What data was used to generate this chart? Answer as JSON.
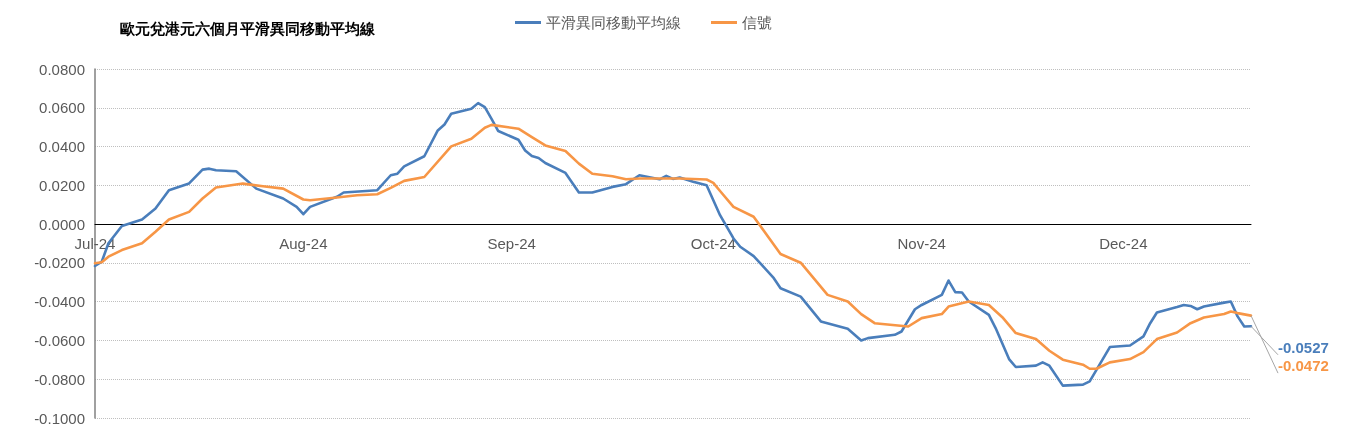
{
  "chart_data": {
    "type": "line",
    "title": "歐元兌港元六個月平滑異同移動平均線",
    "xlim": [
      "2024-07-01",
      "2024-12-20"
    ],
    "xticks": [
      {
        "value": "2024-07-01",
        "label": "Jul-24"
      },
      {
        "value": "2024-08-01",
        "label": "Aug-24"
      },
      {
        "value": "2024-09-01",
        "label": "Sep-24"
      },
      {
        "value": "2024-10-01",
        "label": "Oct-24"
      },
      {
        "value": "2024-11-01",
        "label": "Nov-24"
      },
      {
        "value": "2024-12-01",
        "label": "Dec-24"
      }
    ],
    "ylim": [
      -0.1,
      0.08
    ],
    "yticks": [
      {
        "value": -0.1,
        "label": "-0.1000"
      },
      {
        "value": -0.08,
        "label": "-0.0800"
      },
      {
        "value": -0.06,
        "label": "-0.0600"
      },
      {
        "value": -0.04,
        "label": "-0.0400"
      },
      {
        "value": -0.02,
        "label": "-0.0200"
      },
      {
        "value": 0,
        "label": "0.0000"
      },
      {
        "value": 0.02,
        "label": "0.0200"
      },
      {
        "value": 0.04,
        "label": "0.0400"
      },
      {
        "value": 0.06,
        "label": "0.0600"
      },
      {
        "value": 0.08,
        "label": "0.0800"
      }
    ],
    "grid": "y",
    "legend": "top",
    "marker": "none",
    "line_style": "solid",
    "series": [
      {
        "name": "平滑異同移動平均線",
        "color": "#4a7ebb",
        "x": [
          "2024-07-01",
          "2024-07-02",
          "2024-07-03",
          "2024-07-05",
          "2024-07-08",
          "2024-07-10",
          "2024-07-12",
          "2024-07-15",
          "2024-07-17",
          "2024-07-18",
          "2024-07-19",
          "2024-07-22",
          "2024-07-25",
          "2024-07-29",
          "2024-07-31",
          "2024-08-01",
          "2024-08-02",
          "2024-08-06",
          "2024-08-07",
          "2024-08-12",
          "2024-08-14",
          "2024-08-15",
          "2024-08-16",
          "2024-08-19",
          "2024-08-21",
          "2024-08-22",
          "2024-08-23",
          "2024-08-26",
          "2024-08-27",
          "2024-08-28",
          "2024-08-29",
          "2024-08-30",
          "2024-09-02",
          "2024-09-03",
          "2024-09-04",
          "2024-09-05",
          "2024-09-06",
          "2024-09-09",
          "2024-09-11",
          "2024-09-13",
          "2024-09-16",
          "2024-09-18",
          "2024-09-20",
          "2024-09-23",
          "2024-09-24",
          "2024-09-25",
          "2024-09-26",
          "2024-09-28",
          "2024-09-30",
          "2024-10-02",
          "2024-10-04",
          "2024-10-05",
          "2024-10-07",
          "2024-10-08",
          "2024-10-10",
          "2024-10-11",
          "2024-10-14",
          "2024-10-17",
          "2024-10-21",
          "2024-10-23",
          "2024-10-24",
          "2024-10-28",
          "2024-10-29",
          "2024-10-31",
          "2024-11-01",
          "2024-11-04",
          "2024-11-05",
          "2024-11-06",
          "2024-11-07",
          "2024-11-08",
          "2024-11-11",
          "2024-11-12",
          "2024-11-14",
          "2024-11-15",
          "2024-11-18",
          "2024-11-19",
          "2024-11-20",
          "2024-11-22",
          "2024-11-25",
          "2024-11-26",
          "2024-11-29",
          "2024-12-02",
          "2024-12-04",
          "2024-12-05",
          "2024-12-06",
          "2024-12-09",
          "2024-12-10",
          "2024-12-11",
          "2024-12-12",
          "2024-12-13",
          "2024-12-16",
          "2024-12-17",
          "2024-12-18",
          "2024-12-19",
          "2024-12-20"
        ],
        "values": [
          -0.0216,
          -0.0194,
          -0.0099,
          -0.001,
          0.0024,
          0.008,
          0.0175,
          0.021,
          0.0281,
          0.0286,
          0.0278,
          0.0273,
          0.0183,
          0.0132,
          0.0089,
          0.0051,
          0.0089,
          0.0141,
          0.0163,
          0.0175,
          0.0252,
          0.026,
          0.0298,
          0.035,
          0.0483,
          0.0514,
          0.0569,
          0.0595,
          0.0624,
          0.0603,
          0.0543,
          0.048,
          0.0435,
          0.038,
          0.0351,
          0.0341,
          0.0315,
          0.0264,
          0.0163,
          0.0163,
          0.0192,
          0.0206,
          0.0252,
          0.0231,
          0.0249,
          0.0233,
          0.024,
          0.0218,
          0.02,
          0.0046,
          -0.0074,
          -0.0117,
          -0.0165,
          -0.0202,
          -0.0279,
          -0.0331,
          -0.0374,
          -0.0502,
          -0.054,
          -0.06,
          -0.0588,
          -0.0571,
          -0.0554,
          -0.0439,
          -0.0417,
          -0.0365,
          -0.0291,
          -0.0351,
          -0.0353,
          -0.0399,
          -0.0468,
          -0.0536,
          -0.0696,
          -0.0737,
          -0.073,
          -0.0713,
          -0.073,
          -0.0833,
          -0.0828,
          -0.0811,
          -0.0634,
          -0.0626,
          -0.0579,
          -0.0511,
          -0.0456,
          -0.0428,
          -0.0417,
          -0.0422,
          -0.0439,
          -0.0425,
          -0.0405,
          -0.0399,
          -0.0476,
          -0.0528,
          -0.0527
        ],
        "value_labels": [
          null,
          null,
          null,
          null,
          null,
          null,
          null,
          null,
          null,
          null,
          null,
          null,
          null,
          null,
          null,
          null,
          null,
          null,
          null,
          null,
          null,
          null,
          null,
          null,
          null,
          null,
          null,
          null,
          null,
          null,
          null,
          null,
          null,
          null,
          null,
          null,
          null,
          null,
          null,
          null,
          null,
          null,
          null,
          null,
          null,
          null,
          null,
          null,
          null,
          null,
          null,
          null,
          null,
          null,
          null,
          null,
          null,
          null,
          null,
          null,
          null,
          null,
          null,
          null,
          null,
          null,
          null,
          null,
          null,
          null,
          null,
          null,
          null,
          null,
          null,
          null,
          null,
          null,
          null,
          null,
          null,
          null,
          null,
          null,
          null,
          null,
          null,
          null,
          null,
          null,
          null,
          null,
          null,
          null,
          "-0.0527"
        ]
      },
      {
        "name": "信號",
        "color": "#f79646",
        "x": [
          "2024-07-01",
          "2024-07-02",
          "2024-07-03",
          "2024-07-05",
          "2024-07-08",
          "2024-07-10",
          "2024-07-12",
          "2024-07-15",
          "2024-07-17",
          "2024-07-19",
          "2024-07-23",
          "2024-07-26",
          "2024-07-29",
          "2024-08-01",
          "2024-08-02",
          "2024-08-06",
          "2024-08-09",
          "2024-08-12",
          "2024-08-14",
          "2024-08-16",
          "2024-08-19",
          "2024-08-23",
          "2024-08-26",
          "2024-08-28",
          "2024-08-29",
          "2024-09-02",
          "2024-09-04",
          "2024-09-06",
          "2024-09-09",
          "2024-09-11",
          "2024-09-13",
          "2024-09-16",
          "2024-09-18",
          "2024-09-20",
          "2024-09-26",
          "2024-09-30",
          "2024-10-01",
          "2024-10-02",
          "2024-10-04",
          "2024-10-07",
          "2024-10-11",
          "2024-10-14",
          "2024-10-18",
          "2024-10-21",
          "2024-10-23",
          "2024-10-25",
          "2024-10-30",
          "2024-11-01",
          "2024-11-04",
          "2024-11-05",
          "2024-11-08",
          "2024-11-11",
          "2024-11-13",
          "2024-11-15",
          "2024-11-18",
          "2024-11-20",
          "2024-11-22",
          "2024-11-25",
          "2024-11-26",
          "2024-11-27",
          "2024-11-29",
          "2024-12-02",
          "2024-12-04",
          "2024-12-06",
          "2024-12-09",
          "2024-12-11",
          "2024-12-13",
          "2024-12-16",
          "2024-12-17",
          "2024-12-18",
          "2024-12-20"
        ],
        "values": [
          -0.0202,
          -0.0197,
          -0.0168,
          -0.0134,
          -0.0099,
          -0.0039,
          0.0024,
          0.0063,
          0.0132,
          0.0189,
          0.0209,
          0.0195,
          0.0183,
          0.0127,
          0.0123,
          0.0137,
          0.0149,
          0.0154,
          0.0187,
          0.0223,
          0.0243,
          0.0401,
          0.044,
          0.0497,
          0.0512,
          0.0492,
          0.0449,
          0.0406,
          0.0377,
          0.0312,
          0.026,
          0.0247,
          0.0231,
          0.0235,
          0.0235,
          0.023,
          0.0213,
          0.0171,
          0.0089,
          0.0038,
          -0.0154,
          -0.0199,
          -0.0365,
          -0.0399,
          -0.0464,
          -0.0511,
          -0.0528,
          -0.0485,
          -0.0464,
          -0.0425,
          -0.0399,
          -0.0417,
          -0.048,
          -0.0562,
          -0.0593,
          -0.0653,
          -0.0699,
          -0.0725,
          -0.0746,
          -0.0746,
          -0.0713,
          -0.0696,
          -0.066,
          -0.0593,
          -0.0559,
          -0.0511,
          -0.0482,
          -0.0464,
          -0.0451,
          -0.0459,
          -0.0472
        ],
        "value_labels": [
          null,
          null,
          null,
          null,
          null,
          null,
          null,
          null,
          null,
          null,
          null,
          null,
          null,
          null,
          null,
          null,
          null,
          null,
          null,
          null,
          null,
          null,
          null,
          null,
          null,
          null,
          null,
          null,
          null,
          null,
          null,
          null,
          null,
          null,
          null,
          null,
          null,
          null,
          null,
          null,
          null,
          null,
          null,
          null,
          null,
          null,
          null,
          null,
          null,
          null,
          null,
          null,
          null,
          null,
          null,
          null,
          null,
          null,
          null,
          null,
          null,
          null,
          null,
          null,
          null,
          null,
          null,
          null,
          null,
          null,
          "-0.0472"
        ]
      }
    ]
  }
}
